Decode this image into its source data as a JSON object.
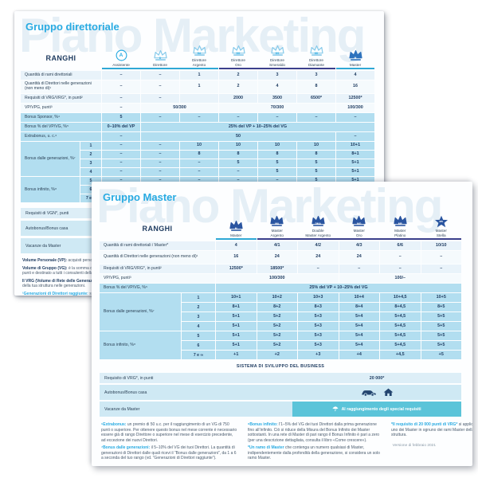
{
  "colors": {
    "accent": "#29abe2",
    "navy_text": "#1d3a5f",
    "teal_line": "#2fa8d5",
    "navy_line": "#3b3f8c",
    "row_blue": "#b2def0",
    "row_pale": "#e9f3fa",
    "chip_teal": "#5bc4d9",
    "crown_doc1": "#2e72bd",
    "crown_doc2": "#2a55a0"
  },
  "doc1": {
    "watermark": "Piano Marketing",
    "title": "Gruppo direttoriale",
    "ranks_label": "RANGHI",
    "columns": [
      {
        "name": "Assistente",
        "badge": "A",
        "icon": "assistant-circle-icon",
        "variant": "circle"
      },
      {
        "name": "Direttore",
        "badge": "D",
        "icon": "crown-icon",
        "variant": "outline"
      },
      {
        "name": "Direttore\nArgento",
        "badge": "DA",
        "icon": "crown-icon",
        "variant": "outline"
      },
      {
        "name": "Direttore\nOro",
        "badge": "DO",
        "icon": "crown-icon",
        "variant": "outline"
      },
      {
        "name": "Direttore\nSmeraldo",
        "badge": "DS",
        "icon": "crown-icon",
        "variant": "outline"
      },
      {
        "name": "Direttore\nDiamante",
        "badge": "DD",
        "icon": "crown-icon",
        "variant": "outline"
      },
      {
        "name": "Master",
        "badge": "M",
        "icon": "crown-icon",
        "variant": "solid"
      }
    ],
    "underline": [
      {
        "span": 3,
        "color": "teal"
      },
      {
        "span": 3,
        "color": "navy"
      },
      {
        "span": 1,
        "color": "teal"
      }
    ],
    "rows": [
      {
        "label": "Quantità di rami direttoriali",
        "variant": "pale",
        "cells": [
          {
            "t": "–"
          },
          {
            "t": "–"
          },
          {
            "t": "1"
          },
          {
            "t": "2"
          },
          {
            "t": "3"
          },
          {
            "t": "3"
          },
          {
            "t": "4"
          }
        ]
      },
      {
        "label": "Quantità di Direttori nelle generazioni (non meno di)¹",
        "variant": "lite",
        "tall": true,
        "cells": [
          {
            "t": "–"
          },
          {
            "t": "–"
          },
          {
            "t": "1"
          },
          {
            "t": "2"
          },
          {
            "t": "4"
          },
          {
            "t": "8"
          },
          {
            "t": "16"
          }
        ]
      },
      {
        "label": "Requisiti di VRG/VRG*, in punti²",
        "variant": "pale",
        "cells": [
          {
            "t": "–"
          },
          {
            "t": "–"
          },
          {
            "t": ""
          },
          {
            "t": "2000"
          },
          {
            "t": "3500"
          },
          {
            "t": "6500*"
          },
          {
            "t": "12500*"
          }
        ]
      },
      {
        "label": "VP/VPG, punti³",
        "variant": "lite",
        "cells": [
          {
            "t": "–"
          },
          {
            "t": "50/300",
            "span": 2
          },
          {
            "t": "70/300",
            "span": 3
          },
          {
            "t": "100/300"
          }
        ]
      },
      {
        "label": "Bonus Sponsor, %⁴",
        "variant": "blue",
        "cells": [
          {
            "t": "5"
          },
          {
            "t": "–"
          },
          {
            "t": "–"
          },
          {
            "t": "–"
          },
          {
            "t": "–"
          },
          {
            "t": "–"
          },
          {
            "t": "–"
          }
        ]
      },
      {
        "label": "Bonus % del VP/VG, %⁵",
        "variant": "blue",
        "cells": [
          {
            "t": "0–10% del VP"
          },
          {
            "t": "25% del VP + 10–25% del VG",
            "span": 6
          }
        ]
      },
      {
        "label": "Extrabonus, u. c.⁶",
        "variant": "blue",
        "cells": [
          {
            "t": "–"
          },
          {
            "t": "50",
            "span": 5
          },
          {
            "t": "–"
          }
        ]
      }
    ],
    "gen_block": {
      "labels": [
        "Bonus dalle generazioni, %⁷",
        "Bonus infinito, %⁸"
      ],
      "rows": [
        {
          "num": "1",
          "cells": [
            "–",
            "–",
            "10",
            "10",
            "10",
            "10",
            "10+1"
          ]
        },
        {
          "num": "2",
          "cells": [
            "–",
            "–",
            "8",
            "8",
            "8",
            "8",
            "8+1"
          ]
        },
        {
          "num": "3",
          "cells": [
            "–",
            "–",
            "–",
            "5",
            "5",
            "5",
            "5+1"
          ]
        },
        {
          "num": "4",
          "cells": [
            "–",
            "–",
            "–",
            "–",
            "5",
            "5",
            "5+1"
          ]
        },
        {
          "num": "5",
          "cells": [
            "–",
            "–",
            "–",
            "–",
            "–",
            "5",
            "5+1"
          ]
        },
        {
          "num": "6",
          "cells": [
            "",
            "",
            "",
            "",
            "",
            "",
            ""
          ]
        },
        {
          "num": "7 e ∞",
          "cells": [
            "",
            "",
            "",
            "",
            "",
            "",
            ""
          ]
        }
      ]
    },
    "bottom_rows": [
      {
        "label": "Requisiti di VGN*, punti",
        "style": "thin"
      },
      {
        "label": "Autobonus/Bonus casa",
        "style": "tall"
      },
      {
        "label": "Vacanze da Master",
        "style": "tall"
      }
    ],
    "footnotes": [
      {
        "lead": "Volume Personale (VP):",
        "text": "acquisti personali e transazioni espressi in punti.",
        "accent": false
      },
      {
        "lead": "Volume di Gruppo (VG):",
        "text": "è la somma del tuo VP e dei VP della tua struttura, espressi in punti e destinato a tutti i consulenti della tua struttura.",
        "accent": false
      },
      {
        "lead": "Il VRG (Volume di Rete delle Generazioni di Direttori):",
        "text": "il tuo VG e dei VG dei Direttori della tua struttura nelle generazioni.",
        "accent": false
      },
      {
        "lead": "¹Generazioni di Direttori raggiunte:",
        "text": "sono le generazioni di Direttori dalle quali ricevi il Bonus dalle generazioni.",
        "accent": true
      }
    ]
  },
  "doc2": {
    "watermark": "Piano Marketing",
    "title": "Gruppo Master",
    "ranks_label": "RANGHI",
    "columns": [
      {
        "name": "Master",
        "badge": "M",
        "icon": "crown-icon",
        "variant": "solid"
      },
      {
        "name": "Master\nArgento",
        "badge": "MA",
        "icon": "crown-icon",
        "variant": "solid"
      },
      {
        "name": "Double\nMaster Argento",
        "badge": "DMA",
        "icon": "crown-icon",
        "variant": "solid"
      },
      {
        "name": "Master\nOro",
        "badge": "MO",
        "icon": "crown-icon",
        "variant": "solid"
      },
      {
        "name": "Master\nPlatino",
        "badge": "MP",
        "icon": "crown-icon",
        "variant": "solid"
      },
      {
        "name": "Master\nStella",
        "badge": "MS",
        "icon": "star-icon",
        "variant": "star"
      }
    ],
    "underline": [
      {
        "span": 1,
        "color": "teal"
      },
      {
        "span": 5,
        "color": "navy"
      }
    ],
    "rows": [
      {
        "label": "Quantità di rami direttoriali / Master*",
        "variant": "pale",
        "cells": [
          {
            "t": "4"
          },
          {
            "t": "4/1"
          },
          {
            "t": "4/2"
          },
          {
            "t": "4/3"
          },
          {
            "t": "6/6"
          },
          {
            "t": "10/10"
          }
        ]
      },
      {
        "label": "Quantità di Direttori nelle generazioni (non meno di)¹",
        "variant": "lite",
        "tall": true,
        "cells": [
          {
            "t": "16"
          },
          {
            "t": "24"
          },
          {
            "t": "24"
          },
          {
            "t": "24"
          },
          {
            "t": "–"
          },
          {
            "t": "–"
          }
        ]
      },
      {
        "label": "Requisiti di VRG/VRG*, in punti²",
        "variant": "pale",
        "cells": [
          {
            "t": "12500*"
          },
          {
            "t": "18500*"
          },
          {
            "t": "–"
          },
          {
            "t": "–"
          },
          {
            "t": "–"
          },
          {
            "t": "–"
          }
        ]
      },
      {
        "label": "VP/VPG, punti³",
        "variant": "lite",
        "cells": [
          {
            "t": "100/300",
            "span": 3
          },
          {
            "t": "100/–",
            "span": 3
          }
        ]
      },
      {
        "label": "Bonus % del VP/VG, %⁵",
        "variant": "blue",
        "cells": [
          {
            "t": "25% del VP + 10–25% del VG",
            "span": 6
          }
        ]
      }
    ],
    "gen_block": {
      "labels": [
        "Bonus dalle generazioni, %⁷",
        "Bonus infinito, %⁸"
      ],
      "rows": [
        {
          "num": "1",
          "cells": [
            "10+1",
            "10+2",
            "10+3",
            "10+4",
            "10+4,5",
            "10+5"
          ]
        },
        {
          "num": "2",
          "cells": [
            "8+1",
            "8+2",
            "8+3",
            "8+4",
            "8+4,5",
            "8+5"
          ]
        },
        {
          "num": "3",
          "cells": [
            "5+1",
            "5+2",
            "5+3",
            "5+4",
            "5+4,5",
            "5+5"
          ]
        },
        {
          "num": "4",
          "cells": [
            "5+1",
            "5+2",
            "5+3",
            "5+4",
            "5+4,5",
            "5+5"
          ]
        },
        {
          "num": "5",
          "cells": [
            "5+1",
            "5+2",
            "5+3",
            "5+4",
            "5+4,5",
            "5+5"
          ]
        },
        {
          "num": "6",
          "cells": [
            "5+1",
            "5+2",
            "5+3",
            "5+4",
            "5+4,5",
            "5+5"
          ]
        },
        {
          "num": "7 e ∞",
          "cells": [
            "+1",
            "+2",
            "+3",
            "+4",
            "+4,5",
            "+5"
          ]
        }
      ]
    },
    "sistema_header": "SISTEMA DI SVILUPPO DEL BUSINESS",
    "requisito_label": "Requisito di VRG*, in punti",
    "requisito_value": "20 000*",
    "autobonus_label": "Autobonus/Bonus casa",
    "vacanze_label": "Vacanze da Master",
    "vacanze_value": "Al raggiungimento degli special requisiti",
    "footnote_columns": [
      [
        {
          "lead": "⁶Extrabonus:",
          "text": "un premio di 50 u.c. per il raggiungimento di un VG di 750 punti o superiore. Per ottenere questo bonus nel mese corrente è necessario essere già di rango Direttore o superiore nel mese di esercizio precedente, ad eccezione dei nuovi Direttori.",
          "accent": true
        },
        {
          "lead": "⁷Bonus dalle generazioni:",
          "text": "il 5–10% del VG dei tuoi Direttori. La quantità di generazioni di Direttori dalle quali ricevi il “Bonus dalle generazioni”, da 1 a 6 a seconda del tuo rango (vd. “Generazioni di Direttori raggiunte”).",
          "accent": true
        }
      ],
      [
        {
          "lead": "⁸Bonus infinito:",
          "text": "l’1–5% del VG dei tuoi Direttori dalla prima generazione fino all’infinito. Ciò si riduce della Misura del Bonus Infinito dei Master sottostanti. In una rete di Master di pari rango il Bonus Infinito è pari a zero (per una descrizione dettagliata, consulta il libro «Come crescere»).",
          "accent": true
        },
        {
          "lead": "*Un ramo di Master",
          "text": "che contenga un numero qualsiasi di Master, indipendentemente dalla profondità della generazione, si considera un solo ramo Master.",
          "accent": true
        }
      ],
      [
        {
          "lead": "*Il requisito di 20 000 punti di VRG*",
          "text": "si applica ad uno dei Master in ognuno dei rami Master della tua struttura.",
          "accent": true
        }
      ]
    ],
    "version": "Versione di febbraio 2021"
  }
}
